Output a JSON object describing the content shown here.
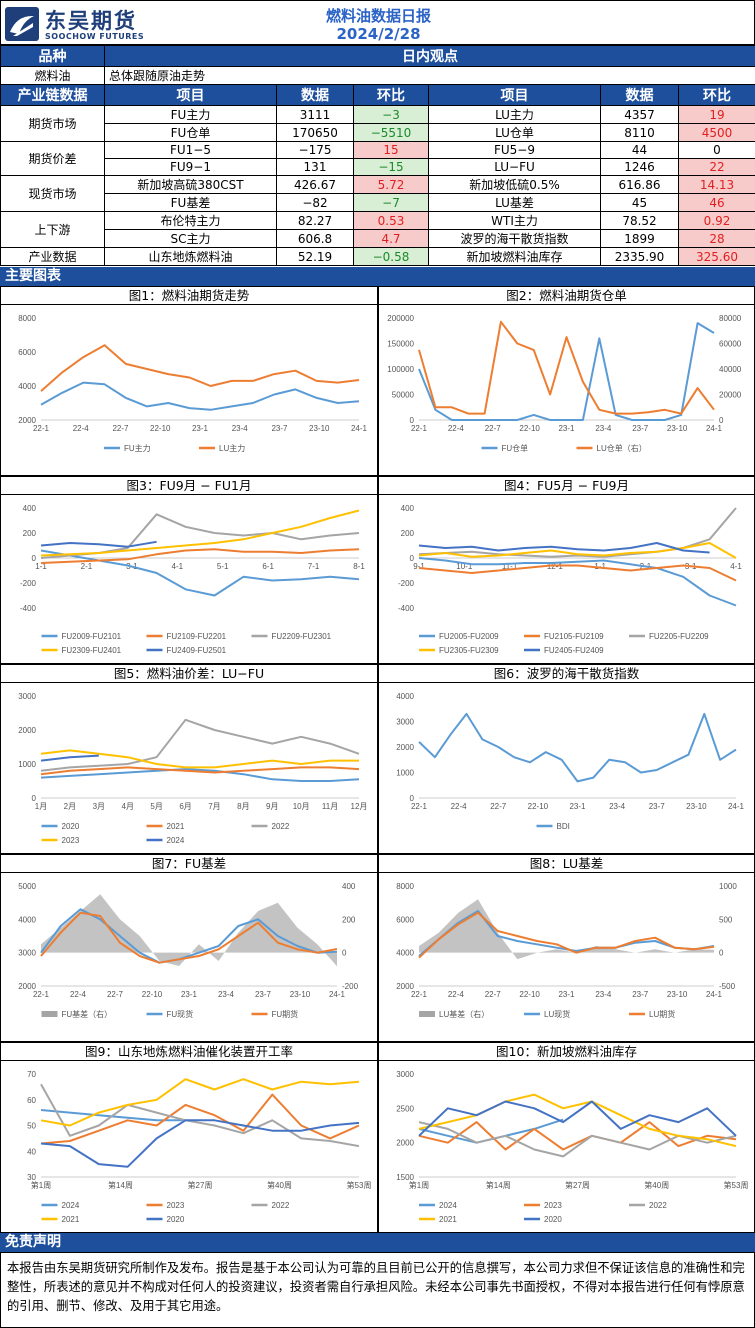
{
  "header": {
    "logo_cn": "东吴期货",
    "logo_en": "SOOCHOW FUTURES",
    "title": "燃料油数据日报",
    "date": "2024/2/28"
  },
  "intraday": {
    "col1": "品种",
    "col2": "日内观点",
    "product": "燃料油",
    "view": "总体跟随原油走势"
  },
  "table": {
    "headers": [
      "产业链数据",
      "项目",
      "数据",
      "环比",
      "项目",
      "数据",
      "环比"
    ],
    "groups": [
      "期货市场",
      "期货价差",
      "现货市场",
      "上下游",
      "产业数据"
    ],
    "rows": [
      {
        "l_item": "FU主力",
        "l_val": "3111",
        "l_chg": "−3",
        "l_dir": "neg",
        "r_item": "LU主力",
        "r_val": "4357",
        "r_chg": "19",
        "r_dir": "pos"
      },
      {
        "l_item": "FU仓单",
        "l_val": "170650",
        "l_chg": "−5510",
        "l_dir": "neg",
        "r_item": "LU仓单",
        "r_val": "8110",
        "r_chg": "4500",
        "r_dir": "pos"
      },
      {
        "l_item": "FU1−5",
        "l_val": "−175",
        "l_chg": "15",
        "l_dir": "pos",
        "r_item": "FU5−9",
        "r_val": "44",
        "r_chg": "0",
        "r_dir": "neu"
      },
      {
        "l_item": "FU9−1",
        "l_val": "131",
        "l_chg": "−15",
        "l_dir": "neg",
        "r_item": "LU−FU",
        "r_val": "1246",
        "r_chg": "22",
        "r_dir": "pos"
      },
      {
        "l_item": "新加坡高硫380CST",
        "l_val": "426.67",
        "l_chg": "5.72",
        "l_dir": "pos",
        "r_item": "新加坡低硫0.5%",
        "r_val": "616.86",
        "r_chg": "14.13",
        "r_dir": "pos"
      },
      {
        "l_item": "FU基差",
        "l_val": "−82",
        "l_chg": "−7",
        "l_dir": "neg",
        "r_item": "LU基差",
        "r_val": "45",
        "r_chg": "46",
        "r_dir": "pos"
      },
      {
        "l_item": "布伦特主力",
        "l_val": "82.27",
        "l_chg": "0.53",
        "l_dir": "pos",
        "r_item": "WTI主力",
        "r_val": "78.52",
        "r_chg": "0.92",
        "r_dir": "pos"
      },
      {
        "l_item": "SC主力",
        "l_val": "606.8",
        "l_chg": "4.7",
        "l_dir": "pos",
        "r_item": "波罗的海干散货指数",
        "r_val": "1899",
        "r_chg": "28",
        "r_dir": "pos"
      },
      {
        "l_item": "山东地炼燃料油",
        "l_val": "52.19",
        "l_chg": "−0.58",
        "l_dir": "neg",
        "r_item": "新加坡燃料油库存",
        "r_val": "2335.90",
        "r_chg": "325.60",
        "r_dir": "pos"
      }
    ]
  },
  "sections": {
    "charts": "主要图表",
    "disclaimer": "免责声明"
  },
  "disclaimer_text": "本报告由东吴期货研究所制作及发布。报告是基于本公司认为可靠的且目前已公开的信息撰写，本公司力求但不保证该信息的准确性和完整性，所表述的意见并不构成对任何人的投资建议，投资者需自行承担风险。未经本公司事先书面授权，不得对本报告进行任何有悖原意的引用、删节、修改、及用于其它用途。",
  "chart_data": [
    {
      "id": "c1",
      "type": "line",
      "title": "图1：燃料油期货走势",
      "x_ticks": [
        "22-1",
        "22-4",
        "22-7",
        "22-10",
        "23-1",
        "23-4",
        "23-7",
        "23-10",
        "24-1"
      ],
      "y_ticks": [
        "8000",
        "6000",
        "4000",
        "2000"
      ],
      "ylim": [
        2000,
        8000
      ],
      "series": [
        {
          "name": "FU主力",
          "color": "#5b9bd5",
          "values": [
            2900,
            3600,
            4200,
            4100,
            3300,
            2800,
            3000,
            2700,
            2600,
            2800,
            3000,
            3500,
            3800,
            3300,
            3000,
            3100
          ]
        },
        {
          "name": "LU主力",
          "color": "#ed7d31",
          "values": [
            3700,
            4800,
            5700,
            6400,
            5300,
            5000,
            4700,
            4500,
            4000,
            4300,
            4300,
            4700,
            4900,
            4300,
            4200,
            4350
          ]
        }
      ]
    },
    {
      "id": "c2",
      "type": "line",
      "title": "图2：燃料油期货仓单",
      "x_ticks": [
        "22-1",
        "22-4",
        "22-7",
        "22-10",
        "23-1",
        "23-4",
        "23-7",
        "23-10",
        "24-1"
      ],
      "y_ticks": [
        "200000",
        "150000",
        "100000",
        "50000",
        "0"
      ],
      "ylim": [
        0,
        200000
      ],
      "y2_ticks": [
        "80000",
        "60000",
        "40000",
        "20000",
        "0"
      ],
      "y2lim": [
        0,
        80000
      ],
      "series": [
        {
          "name": "FU仓单",
          "color": "#5b9bd5",
          "values": [
            100000,
            20000,
            0,
            0,
            0,
            0,
            0,
            10000,
            0,
            0,
            0,
            160000,
            10000,
            0,
            0,
            0,
            10000,
            190000,
            170650
          ]
        },
        {
          "name": "LU仓单（右）",
          "color": "#ed7d31",
          "values": [
            55000,
            10000,
            10000,
            5000,
            5000,
            77000,
            60000,
            55000,
            20000,
            65000,
            30000,
            8000,
            5000,
            5000,
            6000,
            8000,
            5000,
            25000,
            8110
          ]
        }
      ]
    },
    {
      "id": "c3",
      "type": "line",
      "title": "图3：FU9月 − FU1月",
      "x_ticks": [
        "1-1",
        "2-1",
        "3-1",
        "4-1",
        "5-1",
        "6-1",
        "7-1",
        "8-1"
      ],
      "y_ticks": [
        "400",
        "200",
        "0",
        "-200",
        "-400"
      ],
      "ylim": [
        -400,
        400
      ],
      "series": [
        {
          "name": "FU2009-FU2101",
          "color": "#5b9bd5",
          "values": [
            60,
            20,
            -20,
            -60,
            -120,
            -250,
            -300,
            -150,
            -180,
            -170,
            -150,
            -170
          ]
        },
        {
          "name": "FU2109-FU2201",
          "color": "#ed7d31",
          "values": [
            -40,
            -30,
            -20,
            -10,
            30,
            60,
            70,
            50,
            50,
            40,
            60,
            70
          ]
        },
        {
          "name": "FU2209-FU2301",
          "color": "#a5a5a5",
          "values": [
            0,
            20,
            40,
            80,
            350,
            250,
            200,
            180,
            200,
            150,
            180,
            200
          ]
        },
        {
          "name": "FU2309-FU2401",
          "color": "#ffc000",
          "values": [
            20,
            30,
            40,
            60,
            80,
            100,
            120,
            150,
            200,
            250,
            320,
            380
          ]
        },
        {
          "name": "FU2409-FU2501",
          "color": "#4472c4",
          "values": [
            100,
            120,
            110,
            90,
            130
          ]
        }
      ]
    },
    {
      "id": "c4",
      "type": "line",
      "title": "图4：FU5月 − FU9月",
      "x_ticks": [
        "9-1",
        "10-1",
        "11-1",
        "12-1",
        "1-1",
        "2-1",
        "3-1",
        "4-1"
      ],
      "y_ticks": [
        "400",
        "200",
        "0",
        "-200",
        "-400"
      ],
      "ylim": [
        -400,
        400
      ],
      "series": [
        {
          "name": "FU2005-FU2009",
          "color": "#5b9bd5",
          "values": [
            0,
            -20,
            -50,
            -50,
            -40,
            -40,
            -30,
            -20,
            -50,
            -80,
            -150,
            -300,
            -380
          ]
        },
        {
          "name": "FU2105-FU2109",
          "color": "#ed7d31",
          "values": [
            -80,
            -100,
            -120,
            -100,
            -80,
            -60,
            -60,
            -80,
            -100,
            -80,
            -60,
            -80,
            -180
          ]
        },
        {
          "name": "FU2205-FU2209",
          "color": "#a5a5a5",
          "values": [
            30,
            40,
            50,
            30,
            20,
            10,
            20,
            10,
            30,
            50,
            80,
            150,
            400
          ]
        },
        {
          "name": "FU2305-FU2309",
          "color": "#ffc000",
          "values": [
            20,
            40,
            10,
            20,
            40,
            60,
            30,
            20,
            40,
            50,
            80,
            120,
            0
          ]
        },
        {
          "name": "FU2405-FU2409",
          "color": "#4472c4",
          "values": [
            100,
            80,
            90,
            60,
            80,
            90,
            70,
            60,
            80,
            120,
            60,
            44
          ]
        }
      ]
    },
    {
      "id": "c5",
      "type": "line",
      "title": "图5：燃料油价差：LU−FU",
      "x_ticks": [
        "1月",
        "2月",
        "3月",
        "4月",
        "5月",
        "6月",
        "7月",
        "8月",
        "9月",
        "10月",
        "11月",
        "12月"
      ],
      "y_ticks": [
        "3000",
        "2000",
        "1000",
        "0"
      ],
      "ylim": [
        0,
        3000
      ],
      "series": [
        {
          "name": "2020",
          "color": "#5b9bd5",
          "values": [
            600,
            650,
            700,
            750,
            800,
            850,
            800,
            700,
            550,
            500,
            500,
            550
          ]
        },
        {
          "name": "2021",
          "color": "#ed7d31",
          "values": [
            700,
            800,
            850,
            900,
            850,
            800,
            750,
            800,
            850,
            900,
            900,
            850
          ]
        },
        {
          "name": "2022",
          "color": "#a5a5a5",
          "values": [
            800,
            900,
            950,
            1000,
            1200,
            2300,
            2000,
            1800,
            1600,
            1800,
            1600,
            1300
          ]
        },
        {
          "name": "2023",
          "color": "#ffc000",
          "values": [
            1300,
            1400,
            1300,
            1200,
            1000,
            900,
            900,
            1000,
            1100,
            1000,
            1100,
            1100
          ]
        },
        {
          "name": "2024",
          "color": "#4472c4",
          "values": [
            1100,
            1200,
            1246
          ]
        }
      ]
    },
    {
      "id": "c6",
      "type": "line",
      "title": "图6：波罗的海干散货指数",
      "x_ticks": [
        "22-1",
        "22-4",
        "22-7",
        "22-10",
        "23-1",
        "23-4",
        "23-7",
        "23-10",
        "24-1"
      ],
      "y_ticks": [
        "4000",
        "3000",
        "2000",
        "1000",
        "0"
      ],
      "ylim": [
        0,
        4000
      ],
      "series": [
        {
          "name": "BDI",
          "color": "#5b9bd5",
          "values": [
            2200,
            1600,
            2500,
            3300,
            2300,
            2000,
            1600,
            1400,
            1800,
            1500,
            650,
            800,
            1500,
            1400,
            1000,
            1100,
            1400,
            1700,
            3300,
            1500,
            1900
          ]
        }
      ]
    },
    {
      "id": "c7",
      "type": "line",
      "title": "图7：FU基差",
      "x_ticks": [
        "22-1",
        "22-4",
        "22-7",
        "22-10",
        "23-1",
        "23-4",
        "23-7",
        "23-10",
        "24-1"
      ],
      "y_ticks": [
        "5000",
        "4000",
        "3000",
        "2000"
      ],
      "ylim": [
        2000,
        5000
      ],
      "y2_ticks": [
        "400",
        "200",
        "0",
        "-200"
      ],
      "y2lim": [
        -200,
        400
      ],
      "series": [
        {
          "name": "FU基差（右）",
          "color": "#a5a5a5",
          "values": [
            50,
            150,
            250,
            350,
            200,
            100,
            -50,
            -80,
            50,
            -50,
            120,
            250,
            300,
            150,
            50,
            -82
          ]
        },
        {
          "name": "FU现货",
          "color": "#5b9bd5",
          "values": [
            3000,
            3800,
            4300,
            4000,
            3500,
            3000,
            2700,
            2800,
            3000,
            3200,
            3800,
            4000,
            3500,
            3200,
            3000,
            3030
          ]
        },
        {
          "name": "FU期货",
          "color": "#ed7d31",
          "values": [
            2900,
            3600,
            4200,
            4100,
            3300,
            2900,
            2700,
            2800,
            2900,
            3100,
            3500,
            3900,
            3300,
            3100,
            3000,
            3111
          ]
        }
      ]
    },
    {
      "id": "c8",
      "type": "line",
      "title": "图8：LU基差",
      "x_ticks": [
        "22-1",
        "22-4",
        "22-7",
        "22-10",
        "23-1",
        "23-4",
        "23-7",
        "23-10",
        "24-1"
      ],
      "y_ticks": [
        "8000",
        "6000",
        "4000",
        "2000"
      ],
      "ylim": [
        2000,
        8000
      ],
      "y2_ticks": [
        "1000",
        "500",
        "0",
        "-500"
      ],
      "y2lim": [
        -500,
        1000
      ],
      "series": [
        {
          "name": "LU基差（右）",
          "color": "#a5a5a5",
          "values": [
            100,
            300,
            600,
            800,
            300,
            -100,
            0,
            50,
            0,
            100,
            50,
            0,
            50,
            0,
            50,
            45
          ]
        },
        {
          "name": "LU现货",
          "color": "#5b9bd5",
          "values": [
            3800,
            4800,
            5800,
            6500,
            5000,
            4700,
            4500,
            4300,
            4100,
            4300,
            4300,
            4600,
            4700,
            4300,
            4200,
            4400
          ]
        },
        {
          "name": "LU期货",
          "color": "#ed7d31",
          "values": [
            3700,
            4800,
            5700,
            6400,
            5300,
            5000,
            4700,
            4500,
            4000,
            4300,
            4300,
            4700,
            4900,
            4300,
            4200,
            4357
          ]
        }
      ]
    },
    {
      "id": "c9",
      "type": "line",
      "title": "图9：山东地炼燃料油催化装置开工率",
      "x_ticks": [
        "第1周",
        "第14周",
        "第27周",
        "第40周",
        "第53周"
      ],
      "y_ticks": [
        "70",
        "60",
        "50",
        "40",
        "30"
      ],
      "ylim": [
        30,
        70
      ],
      "series": [
        {
          "name": "2024",
          "color": "#5b9bd5",
          "values": [
            56,
            55,
            54,
            53,
            52,
            52
          ]
        },
        {
          "name": "2023",
          "color": "#ed7d31",
          "values": [
            43,
            44,
            48,
            52,
            50,
            58,
            54,
            48,
            62,
            50,
            45,
            50
          ]
        },
        {
          "name": "2022",
          "color": "#a5a5a5",
          "values": [
            66,
            46,
            50,
            58,
            55,
            52,
            50,
            47,
            52,
            45,
            44,
            42
          ]
        },
        {
          "name": "2021",
          "color": "#ffc000",
          "values": [
            52,
            50,
            55,
            58,
            60,
            68,
            64,
            68,
            64,
            67,
            66,
            67
          ]
        },
        {
          "name": "2020",
          "color": "#4472c4",
          "values": [
            43,
            42,
            35,
            34,
            45,
            52,
            52,
            50,
            48,
            48,
            50,
            51
          ]
        }
      ]
    },
    {
      "id": "c10",
      "type": "line",
      "title": "图10：新加坡燃料油库存",
      "x_ticks": [
        "第1周",
        "第14周",
        "第27周",
        "第40周",
        "第53周"
      ],
      "y_ticks": [
        "3000",
        "2500",
        "2000",
        "1500"
      ],
      "ylim": [
        1500,
        3000
      ],
      "series": [
        {
          "name": "2024",
          "color": "#5b9bd5",
          "values": [
            2200,
            2100,
            2000,
            2100,
            2200,
            2336
          ]
        },
        {
          "name": "2023",
          "color": "#ed7d31",
          "values": [
            2100,
            2000,
            2300,
            1900,
            2200,
            1900,
            2100,
            2000,
            2300,
            1950,
            2100,
            2050
          ]
        },
        {
          "name": "2022",
          "color": "#a5a5a5",
          "values": [
            2300,
            2200,
            2000,
            2100,
            1900,
            1800,
            2100,
            2000,
            1900,
            2100,
            2000,
            2100
          ]
        },
        {
          "name": "2021",
          "color": "#ffc000",
          "values": [
            2200,
            2300,
            2400,
            2600,
            2700,
            2500,
            2600,
            2400,
            2200,
            2100,
            2050,
            1950
          ]
        },
        {
          "name": "2020",
          "color": "#4472c4",
          "values": [
            2100,
            2500,
            2400,
            2600,
            2500,
            2300,
            2600,
            2200,
            2400,
            2300,
            2500,
            2100
          ]
        }
      ]
    }
  ]
}
